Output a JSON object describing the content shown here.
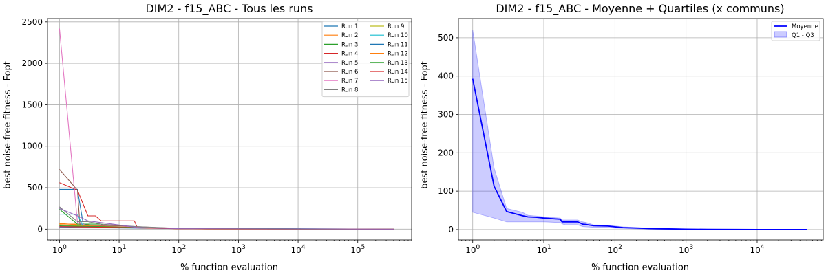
{
  "chart_data": [
    {
      "type": "line",
      "title": "DIM2 - f15_ABC - Tous les runs",
      "xlabel": "% function evaluation",
      "ylabel": "best noise-free fitness - Fopt",
      "xscale": "log",
      "xlim": [
        0.63,
        800000
      ],
      "ylim": [
        -130,
        2540
      ],
      "xticks": [
        1,
        10,
        100,
        1000,
        10000,
        100000
      ],
      "xtick_labels": [
        "10^0",
        "10^1",
        "10^2",
        "10^3",
        "10^4",
        "10^5"
      ],
      "yticks": [
        0,
        500,
        1000,
        1500,
        2000,
        2500
      ],
      "grid": true,
      "legend": {
        "placement": "top-right",
        "columns": 2
      },
      "series": [
        {
          "name": "Run 1",
          "color": "#1f77b4",
          "points": [
            [
              1,
              480
            ],
            [
              2,
              480
            ],
            [
              2.5,
              60
            ],
            [
              5,
              30
            ],
            [
              20,
              15
            ],
            [
              100,
              8
            ],
            [
              300,
              2
            ],
            [
              400000,
              0
            ]
          ]
        },
        {
          "name": "Run 2",
          "color": "#ff7f0e",
          "points": [
            [
              1,
              60
            ],
            [
              3,
              60
            ],
            [
              3.2,
              30
            ],
            [
              10,
              25
            ],
            [
              30,
              15
            ],
            [
              100,
              5
            ],
            [
              300,
              1
            ],
            [
              400000,
              0
            ]
          ]
        },
        {
          "name": "Run 3",
          "color": "#2ca02c",
          "points": [
            [
              1,
              240
            ],
            [
              2,
              60
            ],
            [
              5,
              60
            ],
            [
              6,
              20
            ],
            [
              30,
              15
            ],
            [
              100,
              8
            ],
            [
              400000,
              0
            ]
          ]
        },
        {
          "name": "Run 4",
          "color": "#d62728",
          "points": [
            [
              1,
              560
            ],
            [
              2,
              470
            ],
            [
              3,
              160
            ],
            [
              4,
              160
            ],
            [
              5,
              100
            ],
            [
              18,
              100
            ],
            [
              20,
              25
            ],
            [
              100,
              10
            ],
            [
              300,
              3
            ],
            [
              400000,
              0
            ]
          ]
        },
        {
          "name": "Run 5",
          "color": "#9467bd",
          "points": [
            [
              1,
              30
            ],
            [
              5,
              30
            ],
            [
              10,
              20
            ],
            [
              100,
              5
            ],
            [
              400000,
              0
            ]
          ]
        },
        {
          "name": "Run 6",
          "color": "#8c564b",
          "points": [
            [
              1,
              720
            ],
            [
              2,
              470
            ],
            [
              2.2,
              50
            ],
            [
              10,
              40
            ],
            [
              40,
              20
            ],
            [
              100,
              5
            ],
            [
              400000,
              0
            ]
          ]
        },
        {
          "name": "Run 7",
          "color": "#e377c2",
          "points": [
            [
              1,
              2420
            ],
            [
              2,
              80
            ],
            [
              3,
              40
            ],
            [
              10,
              30
            ],
            [
              100,
              8
            ],
            [
              400000,
              0
            ]
          ]
        },
        {
          "name": "Run 8",
          "color": "#7f7f7f",
          "points": [
            [
              1,
              270
            ],
            [
              2,
              90
            ],
            [
              3,
              90
            ],
            [
              5,
              60
            ],
            [
              20,
              30
            ],
            [
              100,
              10
            ],
            [
              400000,
              0
            ]
          ]
        },
        {
          "name": "Run 9",
          "color": "#bcbd22",
          "points": [
            [
              1,
              50
            ],
            [
              10,
              20
            ],
            [
              100,
              6
            ],
            [
              400000,
              0
            ]
          ]
        },
        {
          "name": "Run 10",
          "color": "#17becf",
          "points": [
            [
              1,
              180
            ],
            [
              2,
              180
            ],
            [
              2.5,
              30
            ],
            [
              10,
              20
            ],
            [
              100,
              6
            ],
            [
              400000,
              0
            ]
          ]
        },
        {
          "name": "Run 11",
          "color": "#1f77b4",
          "points": [
            [
              1,
              20
            ],
            [
              50,
              10
            ],
            [
              400000,
              0
            ]
          ]
        },
        {
          "name": "Run 12",
          "color": "#ff7f0e",
          "points": [
            [
              1,
              70
            ],
            [
              3,
              40
            ],
            [
              20,
              20
            ],
            [
              100,
              5
            ],
            [
              400000,
              0
            ]
          ]
        },
        {
          "name": "Run 13",
          "color": "#2ca02c",
          "points": [
            [
              1,
              40
            ],
            [
              10,
              25
            ],
            [
              100,
              5
            ],
            [
              400000,
              0
            ]
          ]
        },
        {
          "name": "Run 14",
          "color": "#d62728",
          "points": [
            [
              1,
              30
            ],
            [
              10,
              20
            ],
            [
              100,
              4
            ],
            [
              400000,
              0
            ]
          ]
        },
        {
          "name": "Run 15",
          "color": "#9467bd",
          "points": [
            [
              1,
              250
            ],
            [
              2,
              160
            ],
            [
              3,
              100
            ],
            [
              10,
              50
            ],
            [
              20,
              20
            ],
            [
              100,
              6
            ],
            [
              400000,
              0
            ]
          ]
        }
      ]
    },
    {
      "type": "line",
      "title": "DIM2 - f15_ABC - Moyenne + Quartiles (x communs)",
      "xlabel": "% function evaluation",
      "ylabel": "best noise-free fitness - Fopt",
      "xscale": "log",
      "xlim": [
        0.63,
        85000
      ],
      "ylim": [
        -27,
        550
      ],
      "xticks": [
        1,
        10,
        100,
        1000,
        10000
      ],
      "xtick_labels": [
        "10^0",
        "10^1",
        "10^2",
        "10^3",
        "10^4"
      ],
      "yticks": [
        0,
        100,
        200,
        300,
        400,
        500
      ],
      "grid": true,
      "legend": {
        "placement": "top-right",
        "columns": 1
      },
      "series": [
        {
          "name": "Moyenne",
          "color": "#0000ff",
          "x": [
            1,
            2,
            3,
            5,
            6,
            8,
            10,
            17,
            18,
            20,
            30,
            35,
            40,
            50,
            80,
            100,
            130,
            200,
            300,
            500,
            1000,
            2000,
            5000,
            10000,
            50000
          ],
          "y": [
            393,
            113,
            47,
            36,
            33,
            32,
            30,
            27,
            20,
            20,
            20,
            14,
            13,
            10,
            9,
            7,
            5,
            4,
            3,
            2,
            1,
            0.5,
            0.2,
            0.1,
            0
          ]
        }
      ],
      "band": {
        "name": "Q1 - Q3",
        "color": "#0000ff",
        "x": [
          1,
          2,
          3,
          5,
          6,
          8,
          10,
          17,
          18,
          20,
          30,
          35,
          40,
          50,
          80,
          100,
          130,
          200,
          300,
          500,
          1000,
          2000,
          5000,
          10000,
          50000
        ],
        "q1": [
          45,
          30,
          20,
          20,
          20,
          20,
          20,
          18,
          15,
          12,
          12,
          8,
          7,
          6,
          5,
          4,
          3,
          2,
          1,
          0.5,
          0.2,
          0.1,
          0,
          0,
          0
        ],
        "q3": [
          520,
          160,
          55,
          45,
          37,
          35,
          33,
          30,
          25,
          25,
          25,
          20,
          18,
          12,
          11,
          9,
          7,
          5,
          4,
          3,
          1.5,
          1,
          0.5,
          0.2,
          0
        ]
      }
    }
  ]
}
